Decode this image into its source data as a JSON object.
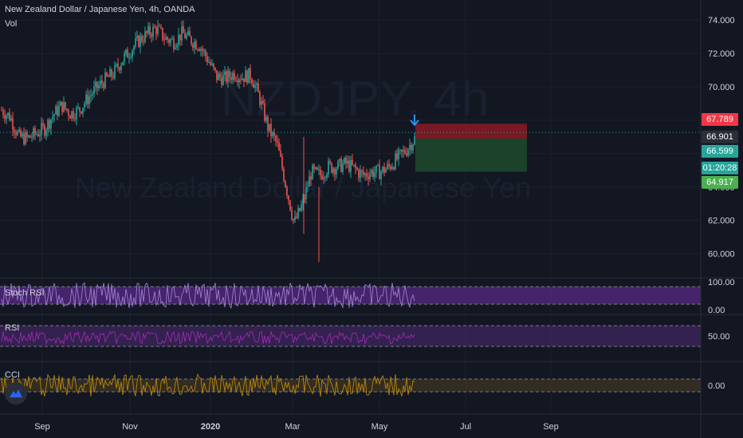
{
  "header": {
    "title": "New Zealand Dollar / Japanese Yen, 4h, OANDA",
    "vol_label": "Vol"
  },
  "watermark": {
    "symbol": "NZDJPY, 4h",
    "name": "New Zealand Dollar / Japanese Yen"
  },
  "colors": {
    "background": "#131722",
    "up": "#26a69a",
    "down": "#ef5350",
    "stop_zone": "#8b1a23",
    "target_zone": "#1e4a2e",
    "current_line": "#26a69a",
    "arrow": "#2196f3",
    "stoch_fill": "#5b2b8a",
    "rsi_fill": "#4a2a6e",
    "cci_fill": "#4a3a20",
    "rsi_line": "#9c27b0",
    "stoch_k": "#9c7bd1",
    "cci_line": "#b8860b"
  },
  "price_labels": [
    {
      "value": "67.789",
      "color": "#f23645"
    },
    {
      "value": "66.901",
      "color": "#2a2e39"
    },
    {
      "value": "66.599",
      "color": "#26a69a"
    },
    {
      "value": "01:20:28",
      "color": "#26a69a"
    },
    {
      "value": "64.917",
      "color": "#4caf50"
    }
  ],
  "panes": {
    "stoch": {
      "title": "Stoch RSI",
      "ticks": [
        "100.00",
        "0.00"
      ]
    },
    "rsi": {
      "title": "RSI",
      "ticks": [
        "50.00"
      ]
    },
    "cci": {
      "title": "CCI",
      "ticks": [
        "0.00"
      ]
    }
  },
  "chart_data": {
    "type": "line",
    "title": "New Zealand Dollar / Japanese Yen, 4h, OANDA",
    "y_ticks": [
      "74.000",
      "72.000",
      "70.000",
      "68.000",
      "66.000",
      "64.000",
      "62.000",
      "60.000"
    ],
    "ylim": [
      58.6,
      75.2
    ],
    "x_ticks": [
      "Sep",
      "Nov",
      "2020",
      "Mar",
      "May",
      "Jul",
      "Sep"
    ],
    "series": [
      {
        "values": [
          68.6,
          68.2,
          67.0,
          66.9,
          67.2,
          67.5,
          68.3,
          68.9,
          68.4,
          68.6,
          69.3,
          69.9,
          70.4,
          70.8,
          71.6,
          72.2,
          72.8,
          73.2,
          73.5,
          72.9,
          72.7,
          73.2,
          72.8,
          72.5,
          71.6,
          70.6,
          70.5,
          70.8,
          70.6,
          70.7,
          69.3,
          67.5,
          66.6,
          64.2,
          61.8,
          63.0,
          64.9,
          64.7,
          65.2,
          65.2,
          65.4,
          65.1,
          64.7,
          64.9,
          64.9,
          65.2,
          65.7,
          66.2,
          66.9
        ]
      }
    ],
    "overlays": {
      "current_price": 66.599,
      "stop_zone": [
        66.901,
        67.789
      ],
      "target_zone": [
        64.917,
        66.901
      ]
    },
    "indicators": {
      "stoch_rsi_range": [
        0,
        100
      ],
      "rsi_levels": [
        70,
        30
      ],
      "cci_levels": [
        100,
        -100
      ]
    },
    "grid": true
  }
}
